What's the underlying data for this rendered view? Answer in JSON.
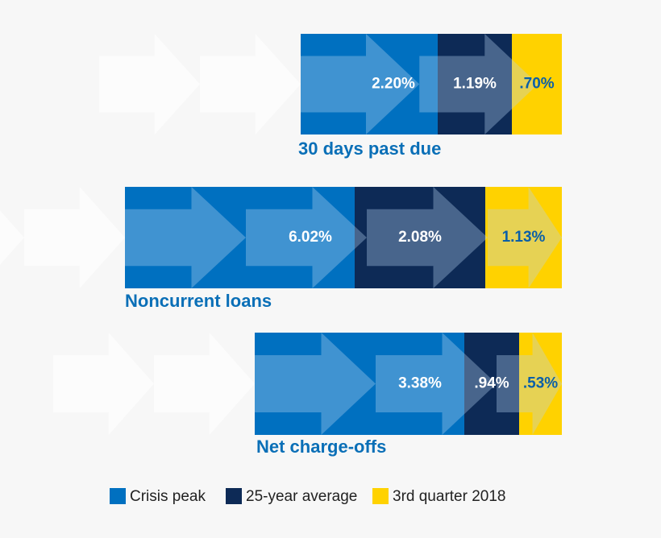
{
  "chart_data": {
    "type": "bar",
    "categories": [
      "30 days past due",
      "Noncurrent loans",
      "Net charge-offs"
    ],
    "series": [
      {
        "name": "Crisis peak",
        "color": "#0070c0",
        "values": [
          2.2,
          6.02,
          3.38
        ],
        "value_labels": [
          "2.20%",
          "6.02%",
          "3.38%"
        ]
      },
      {
        "name": "25-year average",
        "color": "#0d2a56",
        "values": [
          1.19,
          2.08,
          0.94
        ],
        "value_labels": [
          "1.19%",
          "2.08%",
          ".94%"
        ]
      },
      {
        "name": "3rd quarter 2018",
        "color": "#ffd200",
        "values": [
          0.7,
          1.13,
          0.53
        ],
        "value_labels": [
          ".70%",
          "1.13%",
          ".53%"
        ]
      }
    ]
  }
}
